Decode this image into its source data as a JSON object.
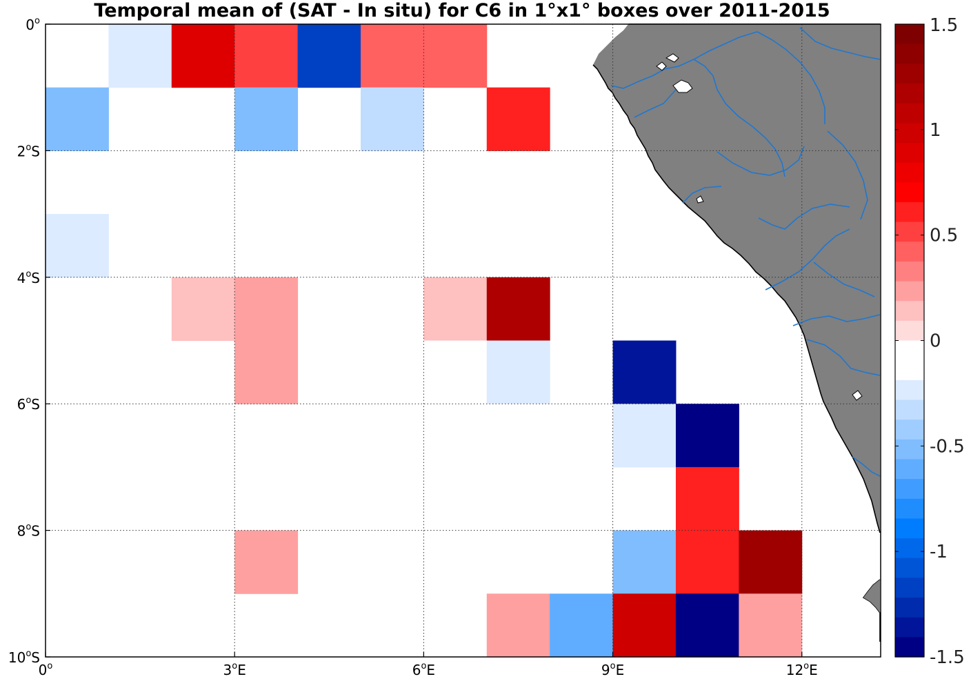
{
  "title": "Temporal mean of (SAT - In situ) for C6 in 1°x1° boxes over 2011-2015",
  "chart_data": {
    "type": "heatmap",
    "title": "Temporal mean of (SAT - In situ) for C6 in 1°x1° boxes over 2011-2015",
    "x_range_lon_deg": [
      0,
      13.25
    ],
    "y_range_lat_deg": [
      -10,
      0
    ],
    "x_ticks": [
      {
        "value": 0,
        "deg": "0",
        "suffix": ""
      },
      {
        "value": 3,
        "deg": "3",
        "suffix": "E"
      },
      {
        "value": 6,
        "deg": "6",
        "suffix": "E"
      },
      {
        "value": 9,
        "deg": "9",
        "suffix": "E"
      },
      {
        "value": 12,
        "deg": "12",
        "suffix": "E"
      }
    ],
    "y_ticks": [
      {
        "value": 0,
        "deg": "0",
        "suffix": ""
      },
      {
        "value": -2,
        "deg": "2",
        "suffix": "S"
      },
      {
        "value": -4,
        "deg": "4",
        "suffix": "S"
      },
      {
        "value": -6,
        "deg": "6",
        "suffix": "S"
      },
      {
        "value": -8,
        "deg": "8",
        "suffix": "S"
      },
      {
        "value": -10,
        "deg": "10",
        "suffix": "S"
      }
    ],
    "grid": true,
    "colorbar": {
      "placement": "right",
      "min": -1.5,
      "max": 1.5,
      "ticks": [
        "1.5",
        "1",
        "0.5",
        "0",
        "-0.5",
        "-1",
        "-1.5"
      ],
      "colors_top_to_bottom": [
        "#7f0000",
        "#8e0000",
        "#9e0000",
        "#ae0000",
        "#be0000",
        "#ce0000",
        "#de0000",
        "#ee0000",
        "#ff0000",
        "#ff2020",
        "#ff4040",
        "#ff6060",
        "#ff8080",
        "#ffa0a0",
        "#ffc0c0",
        "#ffdcdc",
        "#ffffff",
        "#ffffff",
        "#dcebff",
        "#c0ddff",
        "#a0cdff",
        "#80bdff",
        "#60adff",
        "#409dff",
        "#208dff",
        "#007dff",
        "#0069eb",
        "#0054d6",
        "#0040c2",
        "#002bad",
        "#001599",
        "#000084"
      ]
    },
    "cells": [
      {
        "lon": 0,
        "lat": 0,
        "value": -0.1
      },
      {
        "lon": 1,
        "lat": 0,
        "value": -0.25
      },
      {
        "lon": 2,
        "lat": 0,
        "value": 0.85
      },
      {
        "lon": 3,
        "lat": 0,
        "value": 0.55
      },
      {
        "lon": 4,
        "lat": 0,
        "value": -1.15
      },
      {
        "lon": 5,
        "lat": 0,
        "value": 0.4
      },
      {
        "lon": 6,
        "lat": 0,
        "value": 0.4
      },
      {
        "lon": 0,
        "lat": -1,
        "value": -0.5
      },
      {
        "lon": 3,
        "lat": -1,
        "value": -0.5
      },
      {
        "lon": 5,
        "lat": -1,
        "value": -0.35
      },
      {
        "lon": 7,
        "lat": -1,
        "value": 0.65
      },
      {
        "lon": 1,
        "lat": -2,
        "value": -0.1
      },
      {
        "lon": 0,
        "lat": -3,
        "value": -0.2
      },
      {
        "lon": 2,
        "lat": -4,
        "value": 0.15
      },
      {
        "lon": 3,
        "lat": -4,
        "value": 0.25
      },
      {
        "lon": 6,
        "lat": -4,
        "value": 0.15
      },
      {
        "lon": 7,
        "lat": -4,
        "value": 1.15
      },
      {
        "lon": 3,
        "lat": -5,
        "value": 0.25
      },
      {
        "lon": 6,
        "lat": -5,
        "value": -0.1
      },
      {
        "lon": 7,
        "lat": -5,
        "value": -0.25
      },
      {
        "lon": 9,
        "lat": -5,
        "value": -1.35
      },
      {
        "lon": 7,
        "lat": -6,
        "value": -0.1
      },
      {
        "lon": 9,
        "lat": -6,
        "value": -0.25
      },
      {
        "lon": 10,
        "lat": -6,
        "value": -1.5
      },
      {
        "lon": 10,
        "lat": -7,
        "value": 0.65
      },
      {
        "lon": 3,
        "lat": -8,
        "value": 0.25
      },
      {
        "lon": 9,
        "lat": -8,
        "value": -0.55
      },
      {
        "lon": 10,
        "lat": -8,
        "value": 0.65
      },
      {
        "lon": 11,
        "lat": -8,
        "value": 1.3
      },
      {
        "lon": 7,
        "lat": -9,
        "value": 0.25
      },
      {
        "lon": 8,
        "lat": -9,
        "value": -0.65
      },
      {
        "lon": 9,
        "lat": -9,
        "value": 1.0
      },
      {
        "lon": 10,
        "lat": -9,
        "value": -1.5
      },
      {
        "lon": 11,
        "lat": -9,
        "value": 0.25
      }
    ]
  },
  "map": {
    "land_color": "#808080",
    "river_color": "#1f77d0",
    "coast_color": "#000000"
  }
}
